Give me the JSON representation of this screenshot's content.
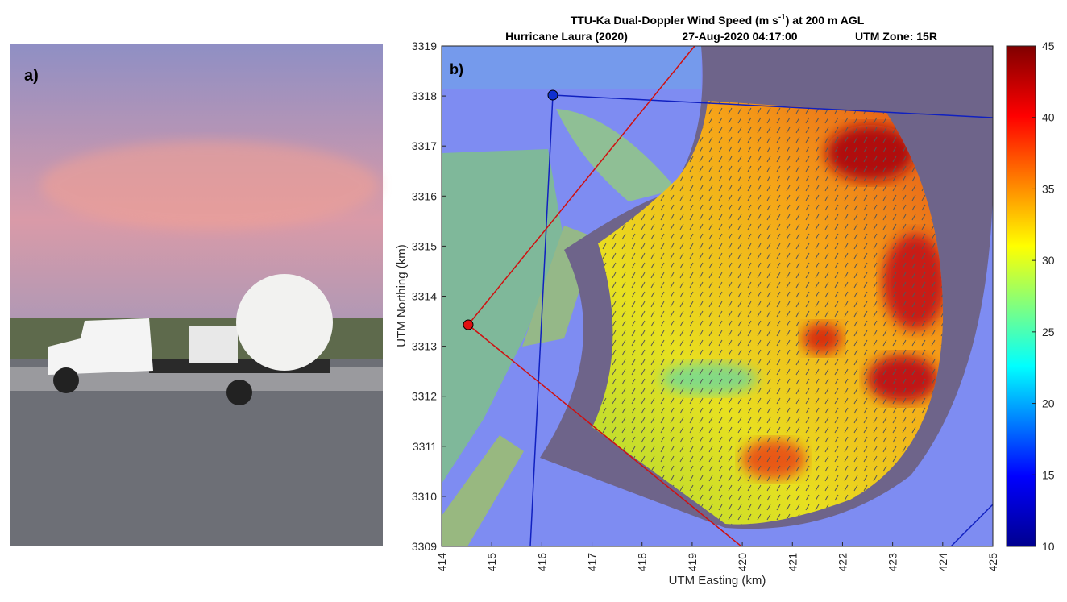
{
  "panel_a": {
    "label": "a)"
  },
  "panel_b": {
    "label": "b)",
    "title_prefix": "TTU-Ka Dual-Doppler Wind Speed (m s",
    "title_superscript": "-1",
    "title_suffix": ") at 200 m AGL",
    "subtitle_event": "Hurricane Laura (2020)",
    "subtitle_time": "27-Aug-2020 04:17:00",
    "subtitle_zone": "UTM Zone: 15R",
    "x_label": "UTM Easting (km)",
    "y_label": "UTM Northing (km)",
    "xlim": [
      414,
      425
    ],
    "xticks": [
      414,
      415,
      416,
      417,
      418,
      419,
      420,
      421,
      422,
      423,
      424,
      425
    ],
    "ylim": [
      3309,
      3319
    ],
    "yticks": [
      3309,
      3310,
      3311,
      3312,
      3313,
      3314,
      3315,
      3316,
      3317,
      3318,
      3319
    ],
    "colorbar": {
      "lim": [
        10,
        45
      ],
      "ticks": [
        10,
        15,
        20,
        25,
        30,
        35,
        40,
        45
      ]
    }
  }
}
